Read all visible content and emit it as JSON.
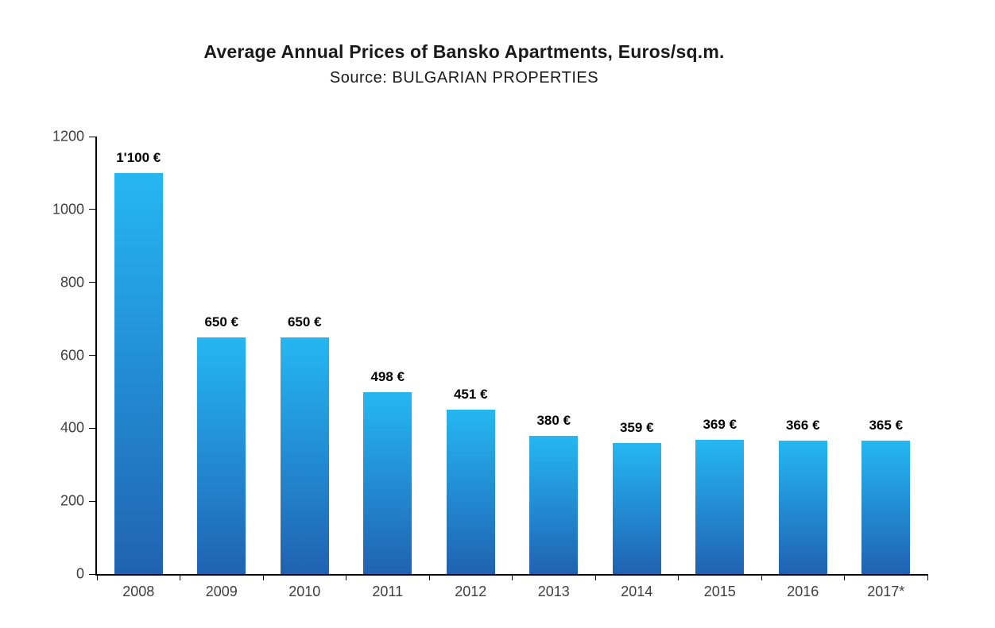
{
  "chart_data": {
    "type": "bar",
    "title": "Average Annual Prices of Bansko Apartments, Euros/sq.m.",
    "subtitle": "Source: BULGARIAN PROPERTIES",
    "categories": [
      "2008",
      "2009",
      "2010",
      "2011",
      "2012",
      "2013",
      "2014",
      "2015",
      "2016",
      "2017*"
    ],
    "values": [
      1100,
      650,
      650,
      498,
      451,
      380,
      359,
      369,
      366,
      365
    ],
    "value_labels": [
      "1'100 €",
      "650 €",
      "650 €",
      "498 €",
      "451 €",
      "380 €",
      "359 €",
      "369 €",
      "366 €",
      "365 €"
    ],
    "xlabel": "",
    "ylabel": "",
    "ylim": [
      0,
      1200
    ],
    "yticks": [
      0,
      200,
      400,
      600,
      800,
      1000,
      1200
    ],
    "grid": false,
    "legend": false,
    "colors": {
      "bar_gradient_top": "#25b7f2",
      "bar_gradient_bottom": "#2062b2",
      "axis_line": "#000000",
      "tick_label": "#3f3f3f",
      "value_label": "#000000",
      "background": "#ffffff"
    }
  }
}
